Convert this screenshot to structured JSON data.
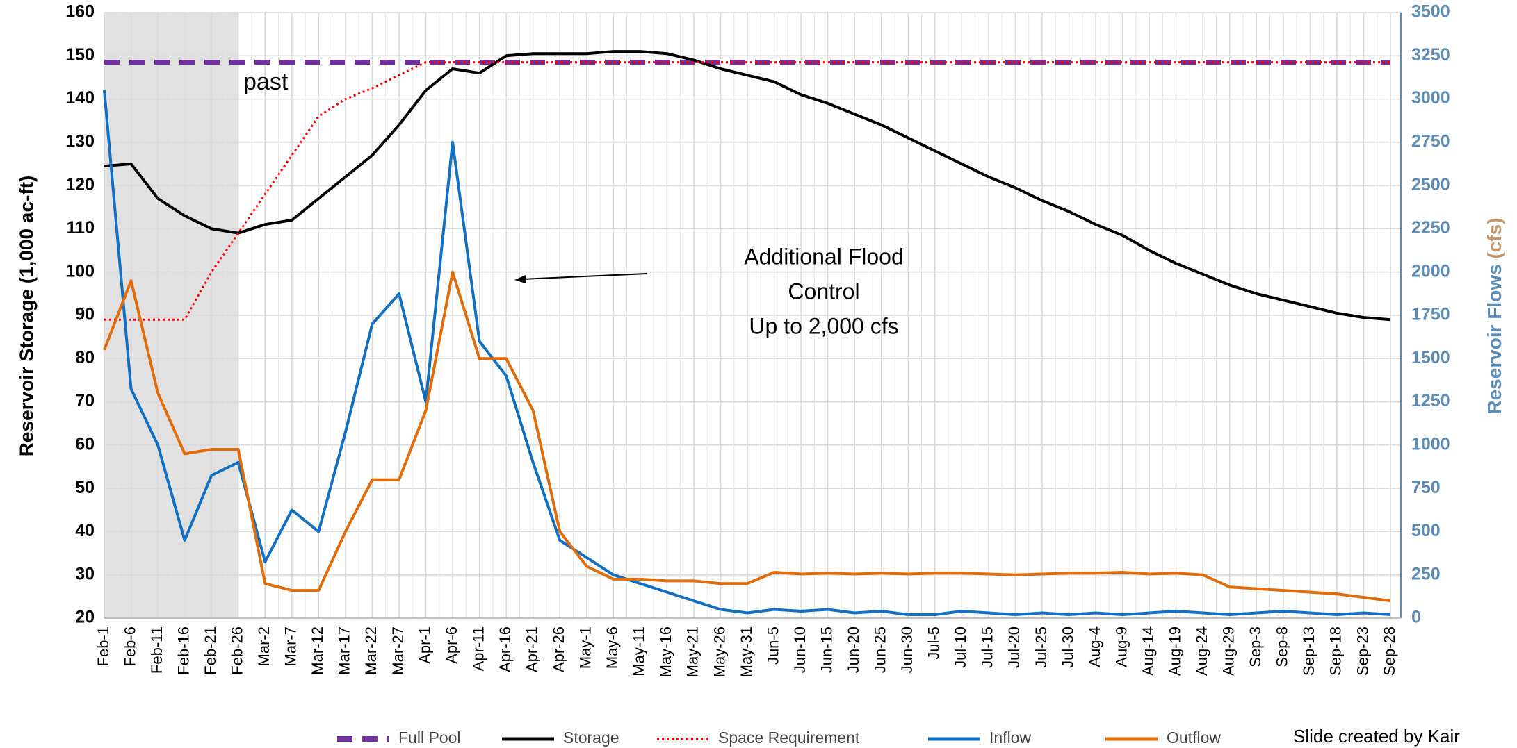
{
  "chart_data": {
    "type": "line",
    "y_label": "Reservoir Storage (1,000 ac-ft)",
    "y2_label": [
      "Reservoir Flows",
      "(cfs)"
    ],
    "categories": [
      "Feb-1",
      "Feb-6",
      "Feb-11",
      "Feb-16",
      "Feb-21",
      "Feb-26",
      "Mar-2",
      "Mar-7",
      "Mar-12",
      "Mar-17",
      "Mar-22",
      "Mar-27",
      "Apr-1",
      "Apr-6",
      "Apr-11",
      "Apr-16",
      "Apr-21",
      "Apr-26",
      "May-1",
      "May-6",
      "May-11",
      "May-16",
      "May-21",
      "May-26",
      "May-31",
      "Jun-5",
      "Jun-10",
      "Jun-15",
      "Jun-20",
      "Jun-25",
      "Jun-30",
      "Jul-5",
      "Jul-10",
      "Jul-15",
      "Jul-20",
      "Jul-25",
      "Jul-30",
      "Aug-4",
      "Aug-9",
      "Aug-14",
      "Aug-19",
      "Aug-24",
      "Aug-29",
      "Sep-3",
      "Sep-8",
      "Sep-13",
      "Sep-18",
      "Sep-23",
      "Sep-28"
    ],
    "ylim": [
      20,
      160
    ],
    "yticks": [
      20,
      30,
      40,
      50,
      60,
      70,
      80,
      90,
      100,
      110,
      120,
      130,
      140,
      150,
      160
    ],
    "y2lim": [
      0,
      3500
    ],
    "y2ticks": [
      0,
      250,
      500,
      750,
      1000,
      1250,
      1500,
      1750,
      2000,
      2250,
      2500,
      2750,
      3000,
      3250,
      3500
    ],
    "grid": true,
    "shaded": {
      "text": "past",
      "end": "Feb-26"
    },
    "annotation": [
      "Additional Flood",
      "Control",
      "Up to 2,000 cfs"
    ],
    "footer": "Slide created by Kair",
    "series": [
      {
        "name": "Full Pool",
        "color": "#7030a0",
        "dash": "dashed",
        "values": [
          148.5,
          148.5,
          148.5,
          148.5,
          148.5,
          148.5,
          148.5,
          148.5,
          148.5,
          148.5,
          148.5,
          148.5,
          148.5,
          148.5,
          148.5,
          148.5,
          148.5,
          148.5,
          148.5,
          148.5,
          148.5,
          148.5,
          148.5,
          148.5,
          148.5,
          148.5,
          148.5,
          148.5,
          148.5,
          148.5,
          148.5,
          148.5,
          148.5,
          148.5,
          148.5,
          148.5,
          148.5,
          148.5,
          148.5,
          148.5,
          148.5,
          148.5,
          148.5,
          148.5,
          148.5,
          148.5,
          148.5,
          148.5,
          148.5
        ]
      },
      {
        "name": "Storage",
        "color": "#000000",
        "dash": "solid",
        "values": [
          124.5,
          125,
          117,
          113,
          110,
          109,
          111,
          112,
          117,
          122,
          127,
          134,
          142,
          147,
          146,
          150,
          150.5,
          150.5,
          150.5,
          151,
          151,
          150.5,
          149,
          147,
          145.5,
          144,
          141,
          139,
          136.5,
          134,
          131,
          128,
          125,
          122,
          119.5,
          116.5,
          114,
          111,
          108.5,
          105,
          102,
          99.5,
          97,
          95,
          93.5,
          92,
          90.5,
          89.5,
          89
        ]
      },
      {
        "name": "Space Requirement",
        "color": "#ff0000",
        "dash": "dotted",
        "values": [
          89,
          89,
          89,
          89,
          100,
          109,
          118,
          127,
          136,
          140,
          142.5,
          145.5,
          148.5,
          148.5,
          148.5,
          148.5,
          148.5,
          148.5,
          148.5,
          148.5,
          148.5,
          148.5,
          148.5,
          148.5,
          148.5,
          148.5,
          148.5,
          148.5,
          148.5,
          148.5,
          148.5,
          148.5,
          148.5,
          148.5,
          148.5,
          148.5,
          148.5,
          148.5,
          148.5,
          148.5,
          148.5,
          148.5,
          148.5,
          148.5,
          148.5,
          148.5,
          148.5,
          148.5,
          148.5
        ]
      },
      {
        "name": "Inflow",
        "color": "#1170c4",
        "dash": "solid",
        "axis": "y2",
        "values": [
          3050,
          1325,
          1000,
          450,
          825,
          900,
          325,
          625,
          500,
          1075,
          1700,
          1875,
          1250,
          2750,
          1600,
          1400,
          900,
          450,
          350,
          250,
          200,
          150,
          100,
          50,
          30,
          50,
          40,
          50,
          30,
          40,
          20,
          20,
          40,
          30,
          20,
          30,
          20,
          30,
          20,
          30,
          40,
          30,
          20,
          30,
          40,
          30,
          20,
          30,
          20
        ]
      },
      {
        "name": "Outflow",
        "color": "#e36c0a",
        "dash": "solid",
        "axis": "y2",
        "values": [
          1550,
          1950,
          1300,
          950,
          975,
          975,
          200,
          160,
          160,
          500,
          800,
          800,
          1200,
          2000,
          1500,
          1500,
          1200,
          500,
          300,
          225,
          225,
          215,
          215,
          200,
          200,
          265,
          255,
          260,
          255,
          260,
          255,
          260,
          260,
          255,
          250,
          255,
          260,
          260,
          265,
          255,
          260,
          250,
          180,
          170,
          160,
          150,
          140,
          120,
          100
        ]
      }
    ]
  }
}
